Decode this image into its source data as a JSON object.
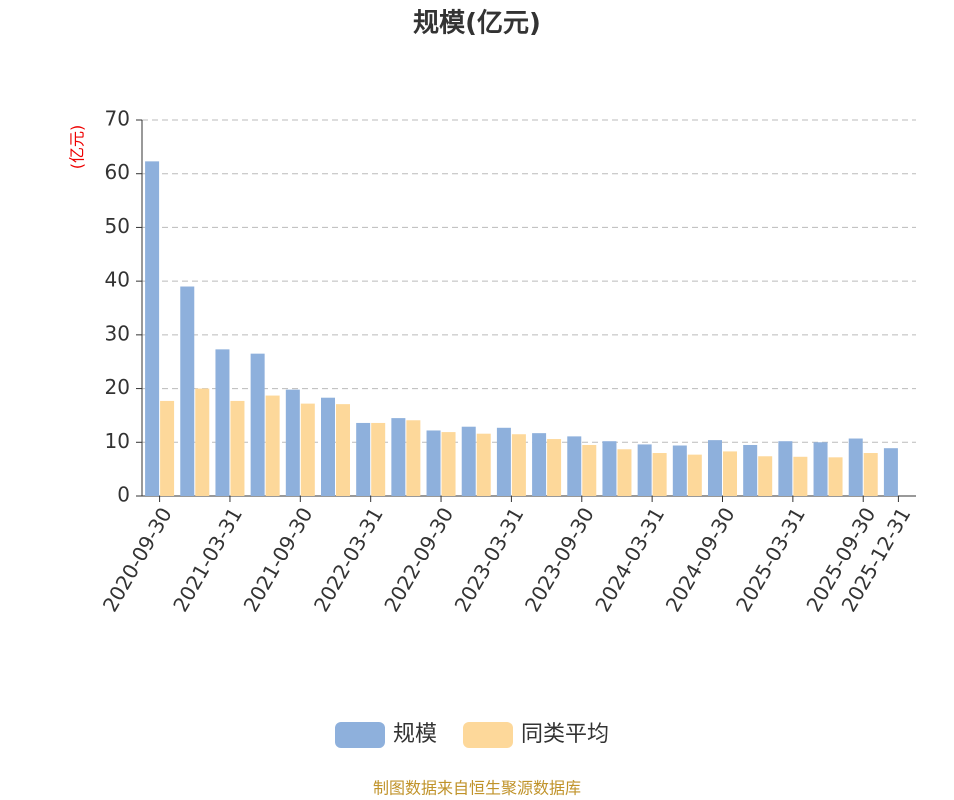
{
  "chart_data": {
    "type": "bar",
    "title": "规模(亿元)",
    "y_label": "(亿元)",
    "categories": [
      "2020-09-30",
      null,
      "2021-03-31",
      null,
      "2021-09-30",
      null,
      "2022-03-31",
      null,
      "2022-09-30",
      null,
      "2023-03-31",
      null,
      "2023-09-30",
      null,
      "2024-03-31",
      null,
      "2024-09-30",
      null,
      "2025-03-31",
      null,
      "2025-09-30",
      "2025-12-31"
    ],
    "series": [
      {
        "name": "规模",
        "color": "#8eb0dc",
        "values": [
          62.3,
          39.0,
          27.3,
          26.5,
          19.8,
          18.3,
          13.6,
          14.5,
          12.2,
          12.9,
          12.7,
          11.7,
          11.1,
          10.2,
          9.6,
          9.4,
          10.4,
          9.5,
          10.2,
          10.0,
          10.7,
          8.9
        ]
      },
      {
        "name": "同类平均",
        "color": "#fdd89a",
        "values": [
          17.7,
          20.0,
          17.7,
          18.7,
          17.2,
          17.1,
          13.6,
          14.1,
          11.9,
          11.6,
          11.5,
          10.6,
          9.5,
          8.7,
          8.0,
          7.7,
          8.3,
          7.4,
          7.3,
          7.2,
          8.0,
          null
        ]
      }
    ],
    "ylim": [
      0,
      70
    ],
    "yticks": [
      0,
      10,
      20,
      30,
      40,
      50,
      60,
      70
    ],
    "grid": true,
    "source": "制图数据来自恒生聚源数据库"
  }
}
